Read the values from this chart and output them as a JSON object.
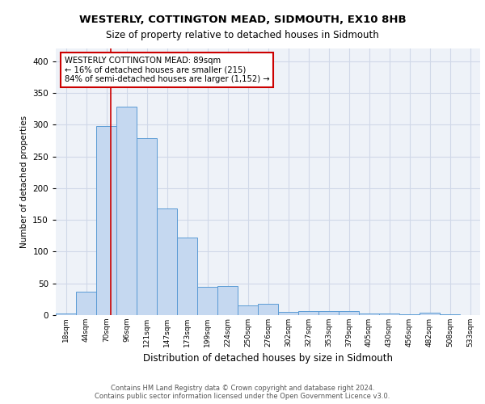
{
  "title1": "WESTERLY, COTTINGTON MEAD, SIDMOUTH, EX10 8HB",
  "title2": "Size of property relative to detached houses in Sidmouth",
  "xlabel": "Distribution of detached houses by size in Sidmouth",
  "ylabel": "Number of detached properties",
  "bin_labels": [
    "18sqm",
    "44sqm",
    "70sqm",
    "96sqm",
    "121sqm",
    "147sqm",
    "173sqm",
    "199sqm",
    "224sqm",
    "250sqm",
    "276sqm",
    "302sqm",
    "327sqm",
    "353sqm",
    "379sqm",
    "405sqm",
    "430sqm",
    "456sqm",
    "482sqm",
    "508sqm",
    "533sqm"
  ],
  "bin_counts": [
    3,
    37,
    298,
    328,
    279,
    168,
    122,
    45,
    46,
    15,
    18,
    5,
    6,
    6,
    6,
    3,
    2,
    1,
    4,
    1,
    0
  ],
  "bar_color": "#c5d8f0",
  "bar_edge_color": "#5b9bd5",
  "property_line_x": 89,
  "bin_edges_values": [
    18,
    44,
    70,
    96,
    121,
    147,
    173,
    199,
    224,
    250,
    276,
    302,
    327,
    353,
    379,
    405,
    430,
    456,
    482,
    508,
    533
  ],
  "red_line_color": "#cc0000",
  "annotation_text": "WESTERLY COTTINGTON MEAD: 89sqm\n← 16% of detached houses are smaller (215)\n84% of semi-detached houses are larger (1,152) →",
  "annotation_box_color": "#ffffff",
  "annotation_box_edge": "#cc0000",
  "grid_color": "#d0d8e8",
  "background_color": "#eef2f8",
  "footer1": "Contains HM Land Registry data © Crown copyright and database right 2024.",
  "footer2": "Contains public sector information licensed under the Open Government Licence v3.0.",
  "ylim": [
    0,
    420
  ],
  "yticks": [
    0,
    50,
    100,
    150,
    200,
    250,
    300,
    350,
    400
  ]
}
